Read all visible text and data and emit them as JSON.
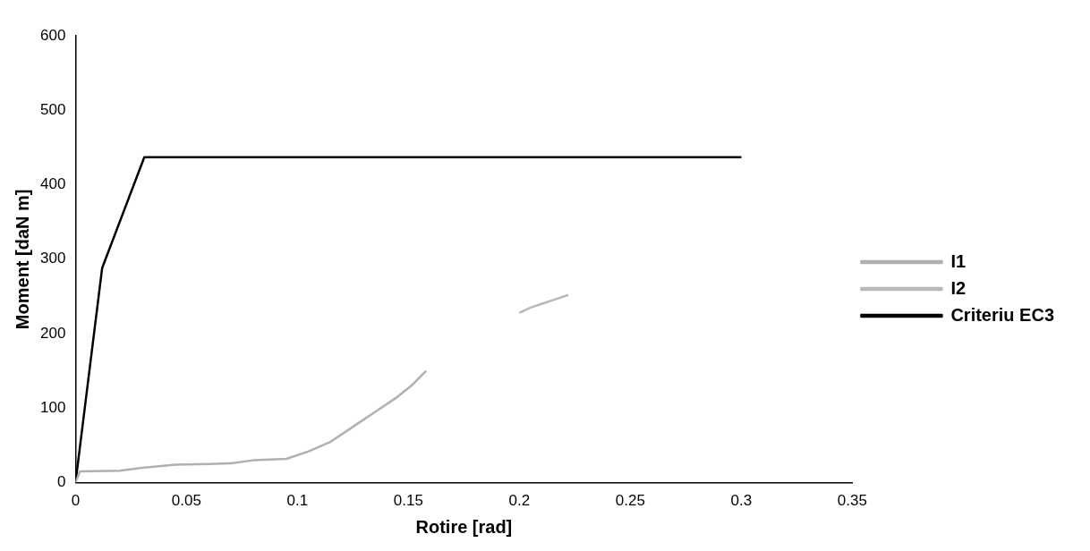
{
  "chart_data": {
    "type": "line",
    "xlabel": "Rotire [rad]",
    "ylabel": "Moment [daN m]",
    "xlim": [
      0,
      0.35
    ],
    "xticks": [
      0,
      0.05,
      0.1,
      0.15,
      0.2,
      0.25,
      0.3,
      0.35
    ],
    "ylim": [
      0,
      600
    ],
    "yticks": [
      0,
      100,
      200,
      300,
      400,
      500,
      600
    ],
    "grid": false,
    "legend": "right",
    "marker": "none",
    "series": [
      {
        "name": "I1",
        "color": "#b0b0b0",
        "x": [
          0,
          0.002,
          0.02,
          0.03,
          0.045,
          0.06,
          0.07,
          0.08,
          0.095,
          0.105,
          0.115,
          0.125,
          0.135,
          0.145,
          0.152,
          0.158
        ],
        "values": [
          0,
          15,
          16,
          20,
          24,
          25,
          26,
          30,
          32,
          42,
          55,
          75,
          95,
          115,
          132,
          150
        ]
      },
      {
        "name": "I2",
        "color": "#b8b8b8",
        "x": [
          0.2,
          0.205,
          0.21,
          0.215,
          0.222
        ],
        "values": [
          228,
          235,
          240,
          245,
          252
        ]
      },
      {
        "name": "Criteriu EC3",
        "color": "#000000",
        "x": [
          0,
          0.012,
          0.031,
          0.3
        ],
        "values": [
          0,
          288,
          437,
          437
        ]
      }
    ]
  }
}
